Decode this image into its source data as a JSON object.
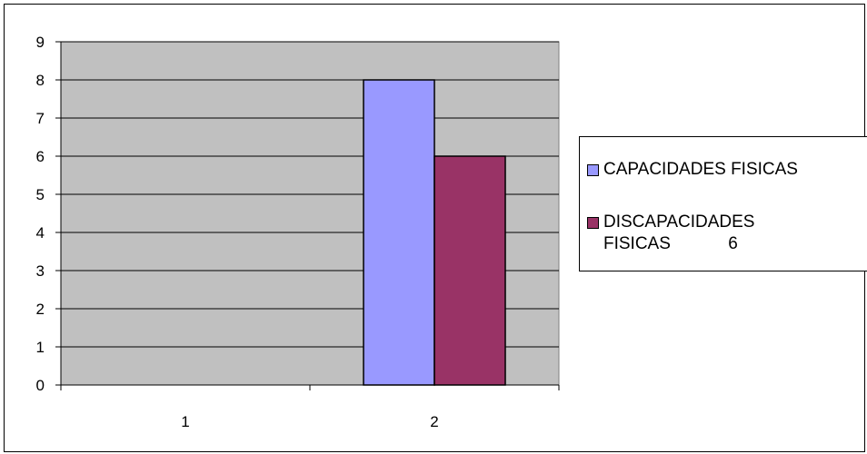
{
  "chart_data": {
    "type": "bar",
    "categories": [
      "1",
      "2"
    ],
    "series": [
      {
        "name": "CAPACIDADES FISICAS",
        "values": [
          null,
          8
        ],
        "color": "#9999ff"
      },
      {
        "name": "DISCAPACIDADES FISICAS 6",
        "values": [
          null,
          6
        ],
        "color": "#993366"
      }
    ],
    "legend_lines": [
      [
        "CAPACIDADES FISICAS"
      ],
      [
        "DISCAPACIDADES",
        "FISICAS            6"
      ]
    ],
    "y_ticks": [
      "0",
      "1",
      "2",
      "3",
      "4",
      "5",
      "6",
      "7",
      "8",
      "9"
    ],
    "ylim": [
      0,
      9
    ],
    "grid": true,
    "plot_background": "#c0c0c0",
    "legend_position": "right",
    "title": "",
    "xlabel": "",
    "ylabel": ""
  }
}
